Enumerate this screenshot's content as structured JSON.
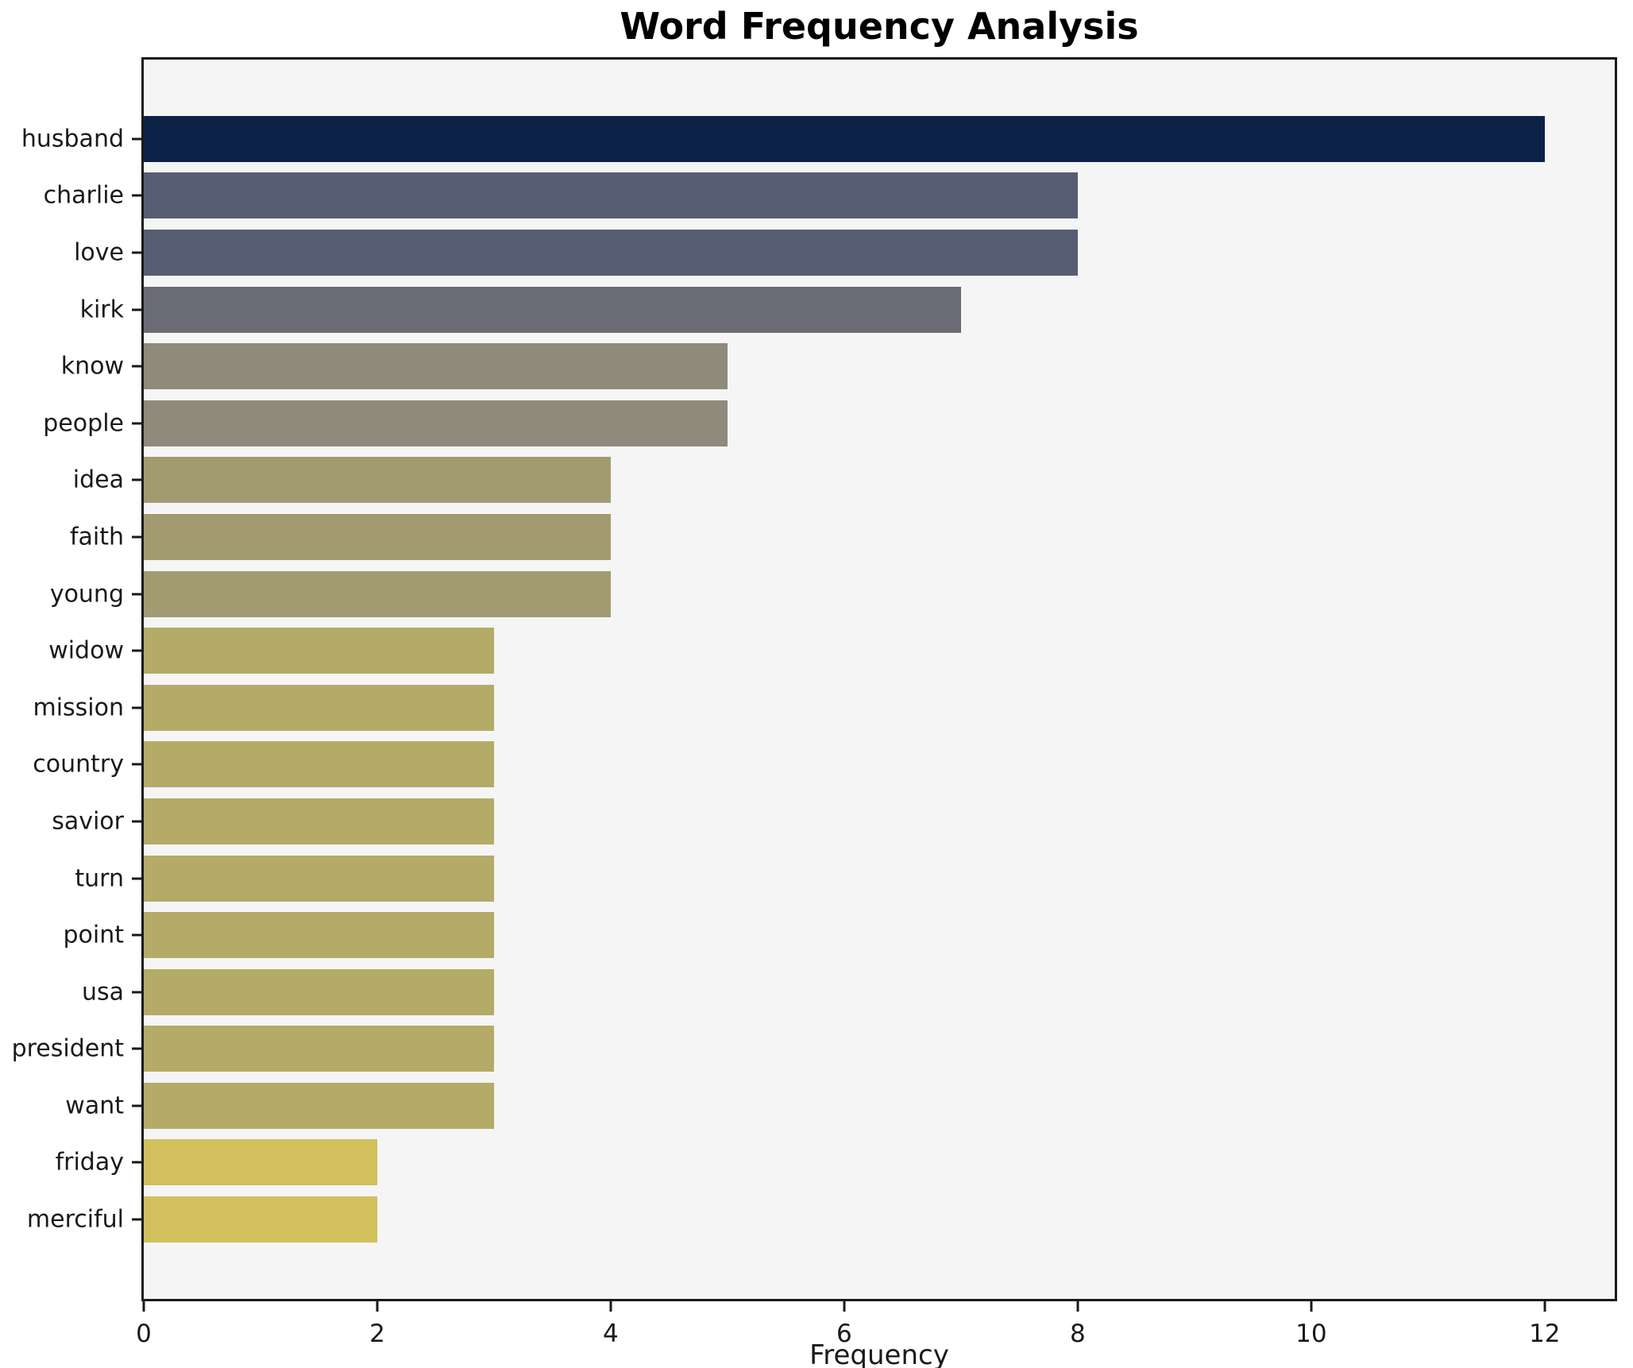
{
  "title": "Word Frequency Analysis",
  "xlabel": "Frequency",
  "chart_data": {
    "type": "bar",
    "orientation": "horizontal",
    "title": "Word Frequency Analysis",
    "xlabel": "Frequency",
    "ylabel": "",
    "categories": [
      "husband",
      "charlie",
      "love",
      "kirk",
      "know",
      "people",
      "idea",
      "faith",
      "young",
      "widow",
      "mission",
      "country",
      "savior",
      "turn",
      "point",
      "usa",
      "president",
      "want",
      "friday",
      "merciful"
    ],
    "values": [
      12,
      8,
      8,
      7,
      5,
      5,
      4,
      4,
      4,
      3,
      3,
      3,
      3,
      3,
      3,
      3,
      3,
      3,
      2,
      2
    ],
    "bar_colors": [
      "#0c2347",
      "#575d72",
      "#575d72",
      "#6a6b74",
      "#8f8a7b",
      "#8f8a7b",
      "#a29b71",
      "#a29b71",
      "#a29b71",
      "#b4ab68",
      "#b4ab68",
      "#b4ab68",
      "#b4ab68",
      "#b4ab68",
      "#b4ab68",
      "#b4ab68",
      "#b4ab68",
      "#b4ab68",
      "#d1c05c",
      "#d1c05c"
    ],
    "xlim": [
      0,
      12.6
    ],
    "xticks": [
      0,
      2,
      4,
      6,
      8,
      10,
      12
    ],
    "grid": false,
    "legend": "none",
    "plot_background": "#f5f5f5",
    "figure_background": "#ffffff",
    "axis_color": "#1a1a1a"
  }
}
